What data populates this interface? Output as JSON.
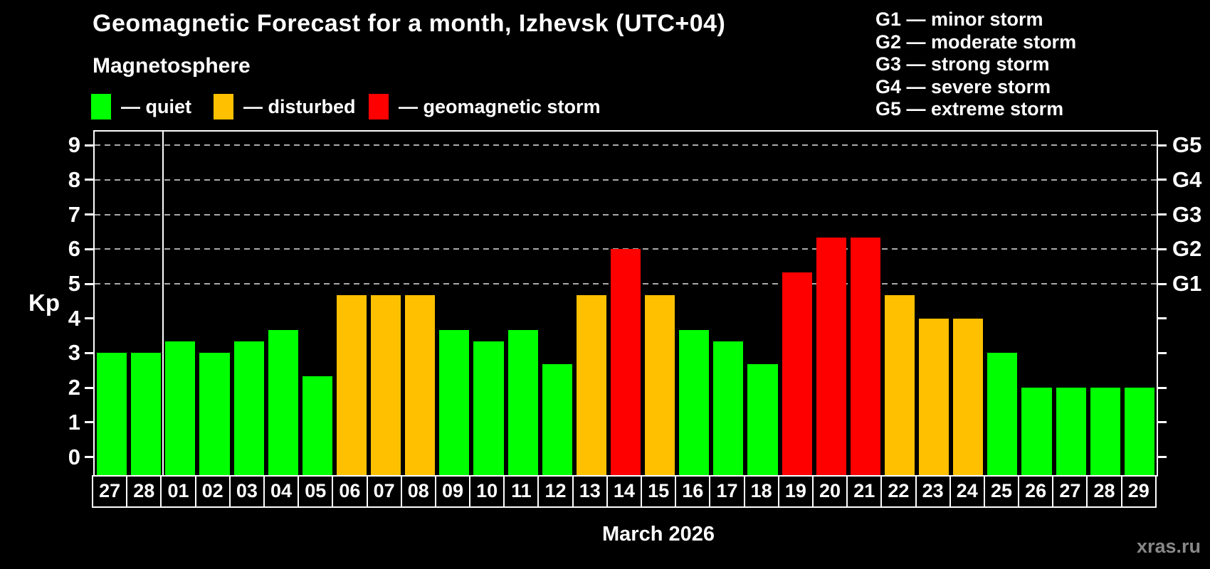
{
  "title": "Geomagnetic Forecast for a month, Izhevsk (UTC+04)",
  "subtitle": "Magnetosphere",
  "legend": [
    {
      "level": "quiet",
      "label": "— quiet"
    },
    {
      "level": "disturbed",
      "label": "— disturbed"
    },
    {
      "level": "storm",
      "label": "— geomagnetic storm"
    }
  ],
  "g_legend": [
    "G1 — minor storm",
    "G2 — moderate storm",
    "G3 — strong storm",
    "G4 — severe storm",
    "G5 — extreme storm"
  ],
  "colors": {
    "quiet": "#00ff00",
    "disturbed": "#ffc000",
    "storm": "#ff0000",
    "grid": "#aaaaaa",
    "axis": "#ffffff",
    "background": "#000000",
    "watermark": "#888888"
  },
  "footer": {
    "xlabel": "March 2026",
    "watermark": "xras.ru"
  },
  "chart_data": {
    "type": "bar",
    "title": "Geomagnetic Forecast for a month, Izhevsk (UTC+04)",
    "xlabel": "March 2026",
    "ylabel": "Kp",
    "ylim": [
      0,
      9
    ],
    "yticks": [
      0,
      1,
      2,
      3,
      4,
      5,
      6,
      7,
      8,
      9
    ],
    "gridlines_at": [
      5,
      6,
      7,
      8,
      9
    ],
    "grid": true,
    "legend_position": "top",
    "right_axis_labels": [
      {
        "kp": 5,
        "label": "G1"
      },
      {
        "kp": 6,
        "label": "G2"
      },
      {
        "kp": 7,
        "label": "G3"
      },
      {
        "kp": 8,
        "label": "G4"
      },
      {
        "kp": 9,
        "label": "G5"
      }
    ],
    "month_separator_slot": 2,
    "bars": [
      {
        "day": "27",
        "kp": 3.0,
        "level": "quiet"
      },
      {
        "day": "28",
        "kp": 3.0,
        "level": "quiet"
      },
      {
        "day": "01",
        "kp": 3.33,
        "level": "quiet"
      },
      {
        "day": "02",
        "kp": 3.0,
        "level": "quiet"
      },
      {
        "day": "03",
        "kp": 3.33,
        "level": "quiet"
      },
      {
        "day": "04",
        "kp": 3.67,
        "level": "quiet"
      },
      {
        "day": "05",
        "kp": 2.33,
        "level": "quiet"
      },
      {
        "day": "06",
        "kp": 4.67,
        "level": "disturbed"
      },
      {
        "day": "07",
        "kp": 4.67,
        "level": "disturbed"
      },
      {
        "day": "08",
        "kp": 4.67,
        "level": "disturbed"
      },
      {
        "day": "09",
        "kp": 3.67,
        "level": "quiet"
      },
      {
        "day": "10",
        "kp": 3.33,
        "level": "quiet"
      },
      {
        "day": "11",
        "kp": 3.67,
        "level": "quiet"
      },
      {
        "day": "12",
        "kp": 2.67,
        "level": "quiet"
      },
      {
        "day": "13",
        "kp": 4.67,
        "level": "disturbed"
      },
      {
        "day": "14",
        "kp": 6.0,
        "level": "storm"
      },
      {
        "day": "15",
        "kp": 4.67,
        "level": "disturbed"
      },
      {
        "day": "16",
        "kp": 3.67,
        "level": "quiet"
      },
      {
        "day": "17",
        "kp": 3.33,
        "level": "quiet"
      },
      {
        "day": "18",
        "kp": 2.67,
        "level": "quiet"
      },
      {
        "day": "19",
        "kp": 5.33,
        "level": "storm"
      },
      {
        "day": "20",
        "kp": 6.33,
        "level": "storm"
      },
      {
        "day": "21",
        "kp": 6.33,
        "level": "storm"
      },
      {
        "day": "22",
        "kp": 4.67,
        "level": "disturbed"
      },
      {
        "day": "23",
        "kp": 4.0,
        "level": "disturbed"
      },
      {
        "day": "24",
        "kp": 4.0,
        "level": "disturbed"
      },
      {
        "day": "25",
        "kp": 3.0,
        "level": "quiet"
      },
      {
        "day": "26",
        "kp": 2.0,
        "level": "quiet"
      },
      {
        "day": "27",
        "kp": 2.0,
        "level": "quiet"
      },
      {
        "day": "28",
        "kp": 2.0,
        "level": "quiet"
      },
      {
        "day": "29",
        "kp": 2.0,
        "level": "quiet"
      }
    ]
  }
}
